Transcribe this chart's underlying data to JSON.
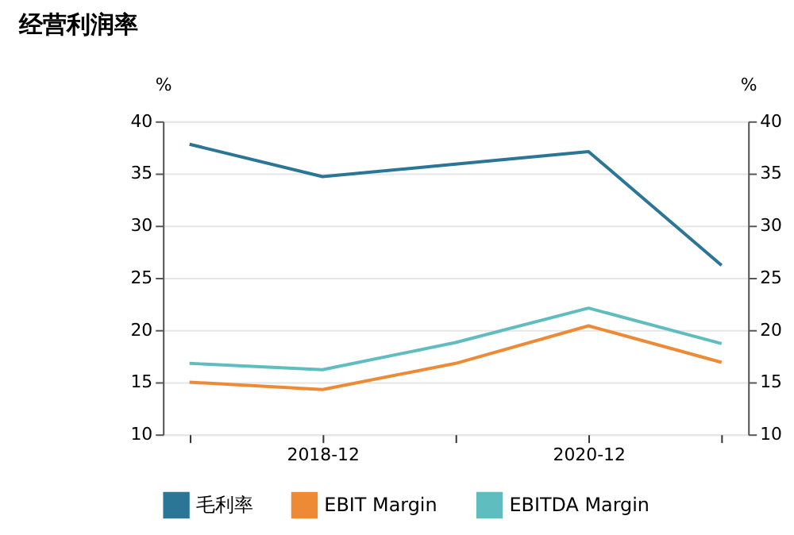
{
  "chart_data": {
    "type": "line",
    "title": "经营利润率",
    "categories": [
      null,
      "2018-12",
      null,
      "2020-12",
      null
    ],
    "series": [
      {
        "name": "毛利率",
        "color": "#2b7597",
        "values": [
          37.8,
          34.7,
          35.9,
          37.1,
          26.2
        ]
      },
      {
        "name": "EBIT Margin",
        "color": "#ee8a35",
        "values": [
          15.0,
          14.3,
          16.8,
          20.4,
          16.9
        ]
      },
      {
        "name": "EBITDA Margin",
        "color": "#5fbdbf",
        "values": [
          16.8,
          16.2,
          18.8,
          22.1,
          18.7
        ]
      }
    ],
    "ylabel": "%",
    "y2label": "%",
    "ylim": [
      10,
      40
    ],
    "yticks": [
      10,
      15,
      20,
      25,
      30,
      35,
      40
    ],
    "y2lim": [
      10,
      40
    ],
    "y2ticks": [
      10,
      15,
      20,
      25,
      30,
      35,
      40
    ],
    "grid": "y",
    "legend": "bottom",
    "marker": "none",
    "line_style": "solid"
  }
}
